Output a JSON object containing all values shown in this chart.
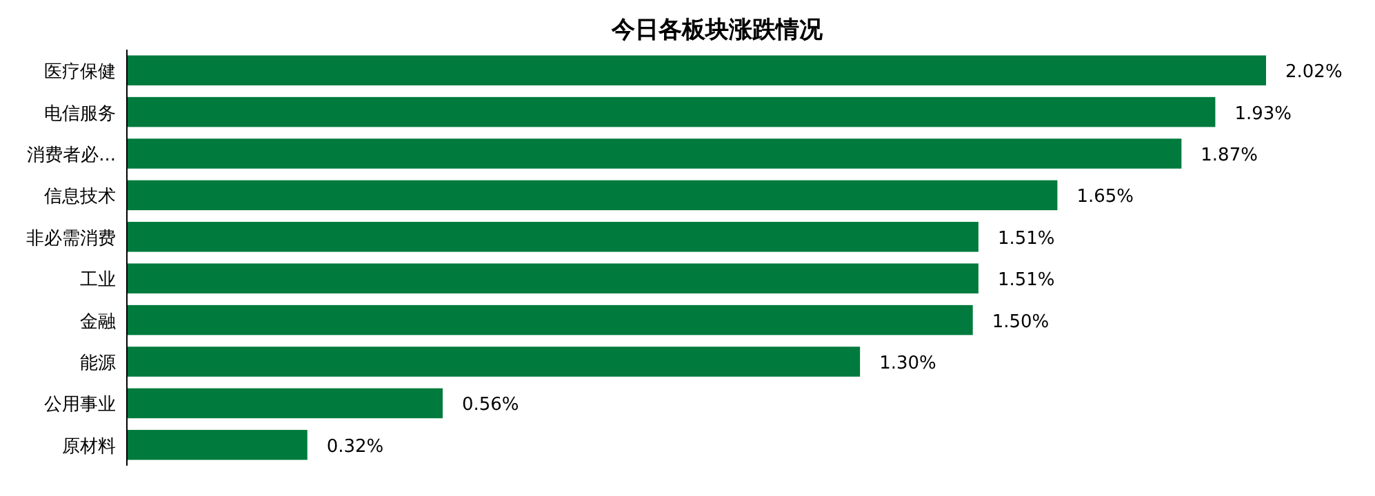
{
  "chart_data": {
    "type": "bar",
    "orientation": "horizontal",
    "title": "今日各板块涨跌情况",
    "categories": [
      "医疗保健",
      "电信服务",
      "消费者必...",
      "信息技术",
      "非必需消费",
      "工业",
      "金融",
      "能源",
      "公用事业",
      "原材料"
    ],
    "values": [
      2.02,
      1.93,
      1.87,
      1.65,
      1.51,
      1.51,
      1.5,
      1.3,
      0.56,
      0.32
    ],
    "value_labels": [
      "2.02%",
      "1.93%",
      "1.87%",
      "1.65%",
      "1.51%",
      "1.51%",
      "1.50%",
      "1.30%",
      "0.56%",
      "0.32%"
    ],
    "color": "#007a3d",
    "grid": false
  }
}
